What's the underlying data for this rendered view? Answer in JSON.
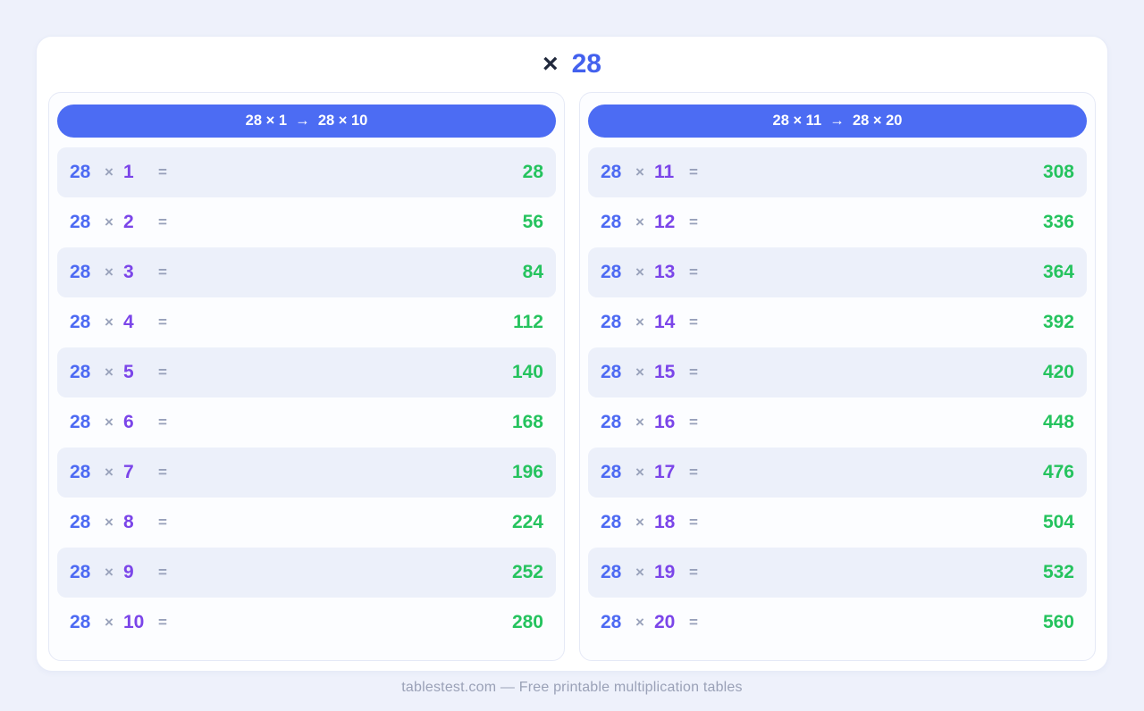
{
  "title": {
    "operator": "×",
    "number": "28"
  },
  "footer": {
    "text": "tablestest.com — Free printable multiplication tables"
  },
  "colors": {
    "page_background": "#eef1fb",
    "card_background": "#ffffff",
    "panel_border": "#e5e9f6",
    "header_bar_blue": "#4c6cf3",
    "header_text": "#ffffff",
    "row_alt_background": "#ecf0fa",
    "multiplicand_blue": "#4d6af3",
    "multiplier_purple": "#7b45e9",
    "operator_gray": "#9aa3bc",
    "product_green": "#25c35e",
    "footer_gray": "#9aa1b7",
    "title_dark": "#20283c",
    "title_blue": "#4361ee"
  },
  "panels": [
    {
      "header": "28 × 1  →  28 × 10",
      "rows": [
        {
          "a": "28",
          "times": "×",
          "b": "1",
          "equals": "=",
          "result": "28"
        },
        {
          "a": "28",
          "times": "×",
          "b": "2",
          "equals": "=",
          "result": "56"
        },
        {
          "a": "28",
          "times": "×",
          "b": "3",
          "equals": "=",
          "result": "84"
        },
        {
          "a": "28",
          "times": "×",
          "b": "4",
          "equals": "=",
          "result": "112"
        },
        {
          "a": "28",
          "times": "×",
          "b": "5",
          "equals": "=",
          "result": "140"
        },
        {
          "a": "28",
          "times": "×",
          "b": "6",
          "equals": "=",
          "result": "168"
        },
        {
          "a": "28",
          "times": "×",
          "b": "7",
          "equals": "=",
          "result": "196"
        },
        {
          "a": "28",
          "times": "×",
          "b": "8",
          "equals": "=",
          "result": "224"
        },
        {
          "a": "28",
          "times": "×",
          "b": "9",
          "equals": "=",
          "result": "252"
        },
        {
          "a": "28",
          "times": "×",
          "b": "10",
          "equals": "=",
          "result": "280"
        }
      ]
    },
    {
      "header": "28 × 11  →  28 × 20",
      "rows": [
        {
          "a": "28",
          "times": "×",
          "b": "11",
          "equals": "=",
          "result": "308"
        },
        {
          "a": "28",
          "times": "×",
          "b": "12",
          "equals": "=",
          "result": "336"
        },
        {
          "a": "28",
          "times": "×",
          "b": "13",
          "equals": "=",
          "result": "364"
        },
        {
          "a": "28",
          "times": "×",
          "b": "14",
          "equals": "=",
          "result": "392"
        },
        {
          "a": "28",
          "times": "×",
          "b": "15",
          "equals": "=",
          "result": "420"
        },
        {
          "a": "28",
          "times": "×",
          "b": "16",
          "equals": "=",
          "result": "448"
        },
        {
          "a": "28",
          "times": "×",
          "b": "17",
          "equals": "=",
          "result": "476"
        },
        {
          "a": "28",
          "times": "×",
          "b": "18",
          "equals": "=",
          "result": "504"
        },
        {
          "a": "28",
          "times": "×",
          "b": "19",
          "equals": "=",
          "result": "532"
        },
        {
          "a": "28",
          "times": "×",
          "b": "20",
          "equals": "=",
          "result": "560"
        }
      ]
    }
  ]
}
